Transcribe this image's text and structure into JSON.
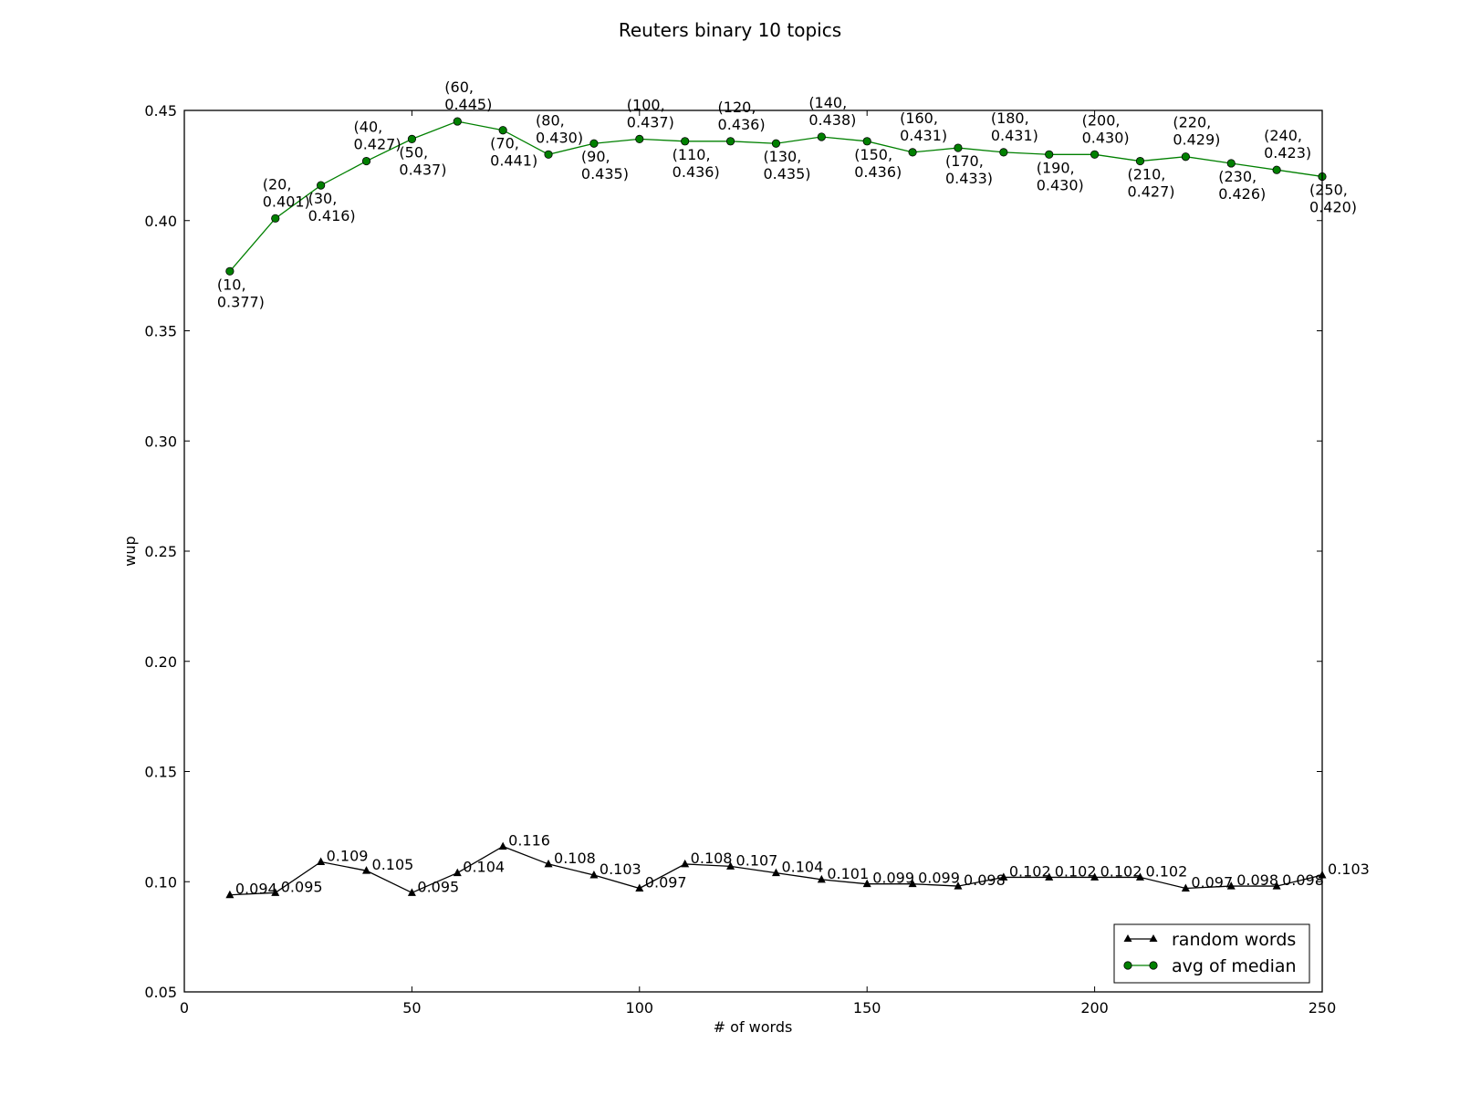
{
  "chart_data": {
    "type": "line",
    "title": "Reuters binary  10 topics",
    "xlabel": "# of words",
    "ylabel": "wup",
    "xlim": [
      0,
      250
    ],
    "ylim": [
      0.05,
      0.45
    ],
    "x_ticks": [
      "0",
      "50",
      "100",
      "150",
      "200",
      "250"
    ],
    "y_ticks": [
      "0.05",
      "0.10",
      "0.15",
      "0.20",
      "0.25",
      "0.30",
      "0.35",
      "0.40",
      "0.45"
    ],
    "grid": false,
    "legend_position": "lower-right",
    "x": [
      10,
      20,
      30,
      40,
      50,
      60,
      70,
      80,
      90,
      100,
      110,
      120,
      130,
      140,
      150,
      160,
      170,
      180,
      190,
      200,
      210,
      220,
      230,
      240,
      250
    ],
    "series": [
      {
        "name": "random words",
        "color": "#000000",
        "marker": "triangle",
        "values": [
          0.094,
          0.095,
          0.109,
          0.105,
          0.095,
          0.104,
          0.116,
          0.108,
          0.103,
          0.097,
          0.108,
          0.107,
          0.104,
          0.101,
          0.099,
          0.099,
          0.098,
          0.102,
          0.102,
          0.102,
          0.102,
          0.097,
          0.098,
          0.098,
          0.103
        ],
        "labels": [
          "0.094",
          "0.095",
          "0.109",
          "0.105",
          "0.095",
          "0.104",
          "0.116",
          "0.108",
          "0.103",
          "0.097",
          "0.108",
          "0.107",
          "0.104",
          "0.101",
          "0.099",
          "0.099",
          "0.098",
          "0.102",
          "0.102",
          "0.102",
          "0.102",
          "0.097",
          "0.098",
          "0.098",
          "0.103"
        ]
      },
      {
        "name": "avg of median",
        "color": "#008000",
        "marker": "circle",
        "values": [
          0.377,
          0.401,
          0.416,
          0.427,
          0.437,
          0.445,
          0.441,
          0.43,
          0.435,
          0.437,
          0.436,
          0.436,
          0.435,
          0.438,
          0.436,
          0.431,
          0.433,
          0.431,
          0.43,
          0.43,
          0.427,
          0.429,
          0.426,
          0.423,
          0.42
        ],
        "labels": [
          [
            "(10,",
            "0.377)"
          ],
          [
            "(20,",
            "0.401)"
          ],
          [
            "(30,",
            "0.416)"
          ],
          [
            "(40,",
            "0.427)"
          ],
          [
            "(50,",
            "0.437)"
          ],
          [
            "(60,",
            "0.445)"
          ],
          [
            "(70,",
            "0.441)"
          ],
          [
            "(80,",
            "0.430)"
          ],
          [
            "(90,",
            "0.435)"
          ],
          [
            "(100,",
            "0.437)"
          ],
          [
            "(110,",
            "0.436)"
          ],
          [
            "(120,",
            "0.436)"
          ],
          [
            "(130,",
            "0.435)"
          ],
          [
            "(140,",
            "0.438)"
          ],
          [
            "(150,",
            "0.436)"
          ],
          [
            "(160,",
            "0.431)"
          ],
          [
            "(170,",
            "0.433)"
          ],
          [
            "(180,",
            "0.431)"
          ],
          [
            "(190,",
            "0.430)"
          ],
          [
            "(200,",
            "0.430)"
          ],
          [
            "(210,",
            "0.427)"
          ],
          [
            "(220,",
            "0.429)"
          ],
          [
            "(230,",
            "0.426)"
          ],
          [
            "(240,",
            "0.423)"
          ],
          [
            "(250,",
            "0.420)"
          ]
        ],
        "label_placement": [
          "below",
          "above",
          "below",
          "above",
          "below",
          "above",
          "below",
          "above",
          "below",
          "above",
          "below",
          "above",
          "below",
          "above",
          "below",
          "above",
          "below",
          "above",
          "below",
          "above",
          "below",
          "above",
          "below",
          "above",
          "below"
        ]
      }
    ]
  }
}
